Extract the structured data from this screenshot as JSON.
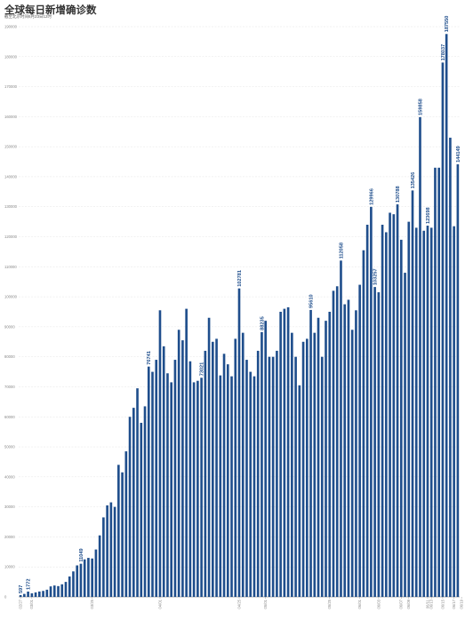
{
  "title": "全球每日新增确诊数",
  "subtitle": "截至北京时间6月23日12时",
  "chart_data": {
    "type": "bar",
    "title": "全球每日新增确诊数",
    "subtitle": "截至北京时间6月23日12时",
    "xlabel": "",
    "ylabel": "",
    "ylim": [
      0,
      190000
    ],
    "yticks": [
      0,
      10000,
      20000,
      30000,
      40000,
      50000,
      60000,
      70000,
      80000,
      90000,
      100000,
      110000,
      120000,
      130000,
      140000,
      150000,
      160000,
      170000,
      180000,
      190000
    ],
    "grid": true,
    "legend": "none",
    "bar_color": "#1f4e8c",
    "label_color": "#1f4e8c",
    "xtick_labels": [
      {
        "index": 0,
        "text": "02/27"
      },
      {
        "index": 3,
        "text": "03/01"
      },
      {
        "index": 19,
        "text": "03/25"
      },
      {
        "index": 37,
        "text": "04/01"
      },
      {
        "index": 58,
        "text": "04/25"
      },
      {
        "index": 65,
        "text": "05/01"
      },
      {
        "index": 82,
        "text": "05/25"
      },
      {
        "index": 90,
        "text": "06/01"
      },
      {
        "index": 95,
        "text": "06/03"
      },
      {
        "index": 101,
        "text": "06/07"
      },
      {
        "index": 103,
        "text": "06/09"
      },
      {
        "index": 108,
        "text": "06/11"
      },
      {
        "index": 109,
        "text": "06/13"
      },
      {
        "index": 112,
        "text": "06/15"
      },
      {
        "index": 115,
        "text": "06/17"
      },
      {
        "index": 117,
        "text": "06/19"
      },
      {
        "index": 119,
        "text": "06/21"
      },
      {
        "index": 120,
        "text": "06/22"
      }
    ],
    "values": [
      597,
      1000,
      1772,
      1200,
      1500,
      1800,
      2000,
      2400,
      3500,
      3800,
      3600,
      4200,
      5000,
      6800,
      8500,
      10500,
      11049,
      12500,
      13000,
      12800,
      15800,
      20500,
      26500,
      30500,
      31500,
      30000,
      44000,
      41500,
      48500,
      60000,
      63000,
      69500,
      58000,
      63500,
      76741,
      75000,
      79000,
      95500,
      83500,
      74500,
      71500,
      79000,
      89000,
      85500,
      96000,
      78500,
      71500,
      72000,
      73021,
      82000,
      93000,
      85000,
      86000,
      73800,
      81000,
      77500,
      73500,
      86000,
      102781,
      88000,
      79000,
      75000,
      73500,
      82000,
      88235,
      92000,
      80000,
      80000,
      82000,
      95000,
      96000,
      96500,
      88000,
      80000,
      70500,
      85000,
      86000,
      95610,
      88000,
      93000,
      80000,
      92000,
      95000,
      102000,
      103500,
      112058,
      97500,
      99000,
      89000,
      95500,
      104000,
      115500,
      124000,
      129966,
      103257,
      101500,
      124000,
      121500,
      128000,
      127500,
      130788,
      119000,
      108000,
      125000,
      135426,
      123000,
      159858,
      122000,
      123698,
      123000,
      143000,
      143000,
      178037,
      187550,
      153000,
      123500,
      144149
    ],
    "data_labels": [
      {
        "index": 0,
        "text": "597"
      },
      {
        "index": 2,
        "text": "1772"
      },
      {
        "index": 16,
        "text": "11049"
      },
      {
        "index": 34,
        "text": "76741"
      },
      {
        "index": 48,
        "text": "73021"
      },
      {
        "index": 58,
        "text": "102781"
      },
      {
        "index": 64,
        "text": "88235"
      },
      {
        "index": 77,
        "text": "95610"
      },
      {
        "index": 85,
        "text": "112058"
      },
      {
        "index": 93,
        "text": "129966"
      },
      {
        "index": 94,
        "text": "103257"
      },
      {
        "index": 100,
        "text": "130788"
      },
      {
        "index": 104,
        "text": "135426"
      },
      {
        "index": 106,
        "text": "159858"
      },
      {
        "index": 108,
        "text": "123698"
      },
      {
        "index": 112,
        "text": "178037"
      },
      {
        "index": 113,
        "text": "187550"
      },
      {
        "index": 116,
        "text": "144149"
      }
    ]
  }
}
